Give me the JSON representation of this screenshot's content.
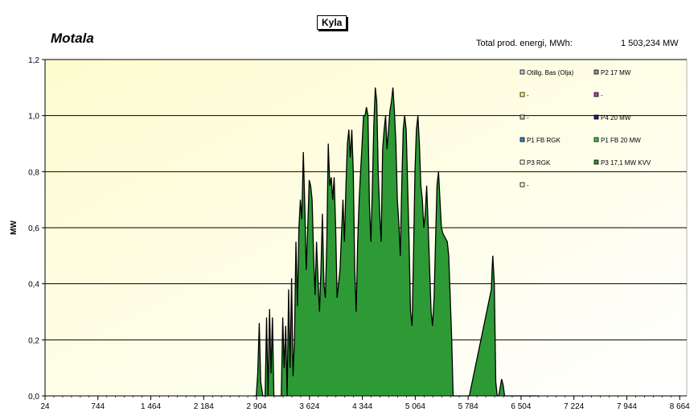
{
  "site_name": "Motala",
  "total": {
    "label": "Total prod. energi, MWh:",
    "value": "1 503,234 MW"
  },
  "colors": {
    "area_fill": "#2e9a36",
    "area_line": "#000000",
    "plot_bg_start": "#fdfccf",
    "plot_bg_end": "#ffffff"
  },
  "chart_data": {
    "type": "area",
    "title": "Kyla",
    "xlabel": "",
    "ylabel": "MW",
    "ylim": [
      0,
      1.2
    ],
    "xlim": [
      24,
      8760
    ],
    "grid": true,
    "legend_position": "top-right",
    "y_ticks": [
      "0,0",
      "0,2",
      "0,4",
      "0,6",
      "0,8",
      "1,0",
      "1,2"
    ],
    "x_ticks": [
      "24",
      "744",
      "1 464",
      "2 184",
      "2 904",
      "3 624",
      "4 344",
      "5 064",
      "5 784",
      "6 504",
      "7 224",
      "7 944",
      "8 664"
    ],
    "legend": [
      {
        "name": "Otillg. Bas (Olja)",
        "color": "#b8c8f0"
      },
      {
        "name": "P2 17 MW",
        "color": "#9a9a9a"
      },
      {
        "name": "-",
        "color": "#ffff66"
      },
      {
        "name": "-",
        "color": "#cc33cc"
      },
      {
        "name": "-",
        "color": "#cfcfcf"
      },
      {
        "name": "P4 20 MW",
        "color": "#1a237e"
      },
      {
        "name": "P1 FB RGK",
        "color": "#3388cc"
      },
      {
        "name": "P1 FB 20 MW",
        "color": "#33cc44"
      },
      {
        "name": "P3 RGK",
        "color": "#ffffff"
      },
      {
        "name": "P3 17,1 MW KVV",
        "color": "#2e9a36"
      },
      {
        "name": "-",
        "color": "#ffffcc"
      }
    ],
    "series": [
      {
        "name": "P3 17,1 MW KVV",
        "x": [
          2860,
          2900,
          2920,
          2940,
          2960,
          2990,
          3020,
          3040,
          3060,
          3080,
          3100,
          3120,
          3140,
          3160,
          3180,
          3200,
          3220,
          3240,
          3260,
          3280,
          3300,
          3320,
          3340,
          3360,
          3380,
          3400,
          3420,
          3440,
          3460,
          3480,
          3500,
          3520,
          3540,
          3560,
          3580,
          3600,
          3620,
          3640,
          3660,
          3680,
          3700,
          3720,
          3740,
          3760,
          3780,
          3800,
          3820,
          3840,
          3860,
          3880,
          3900,
          3920,
          3940,
          3960,
          3980,
          4000,
          4020,
          4040,
          4060,
          4080,
          4100,
          4120,
          4140,
          4160,
          4180,
          4200,
          4220,
          4240,
          4260,
          4280,
          4300,
          4320,
          4340,
          4360,
          4380,
          4400,
          4420,
          4440,
          4460,
          4480,
          4500,
          4520,
          4540,
          4560,
          4580,
          4600,
          4620,
          4640,
          4660,
          4680,
          4700,
          4720,
          4740,
          4760,
          4780,
          4800,
          4820,
          4840,
          4860,
          4880,
          4900,
          4920,
          4940,
          4960,
          4980,
          5000,
          5020,
          5040,
          5060,
          5080,
          5100,
          5120,
          5140,
          5160,
          5180,
          5200,
          5220,
          5240,
          5260,
          5280,
          5300,
          5320,
          5340,
          5360,
          5380,
          5400,
          5420,
          5440,
          5460,
          5480,
          5500,
          5520,
          5540,
          5560,
          5580,
          5600,
          5620,
          5640,
          5660,
          5680,
          5700,
          5720,
          5740,
          5760,
          5780,
          5800,
          6100,
          6110,
          6120,
          6140,
          6160,
          6180,
          6200,
          6220,
          6240,
          6260,
          6280,
          6300,
          6320,
          6340,
          6360,
          6380,
          6400,
          6420,
          6440,
          6460,
          6480,
          6500,
          6520,
          6540,
          6560,
          6580,
          6600,
          6620,
          6640,
          6660,
          6680,
          6700,
          6720,
          6740
        ],
        "values": [
          0,
          0,
          0.08,
          0.26,
          0.05,
          0,
          0,
          0.28,
          0,
          0.31,
          0.08,
          0.28,
          0,
          0,
          0,
          0,
          0,
          0,
          0.28,
          0.1,
          0.25,
          0,
          0.38,
          0.1,
          0.42,
          0.07,
          0.2,
          0.55,
          0.32,
          0.6,
          0.7,
          0.63,
          0.87,
          0.68,
          0.45,
          0.6,
          0.77,
          0.75,
          0.7,
          0.5,
          0.36,
          0.55,
          0.42,
          0.3,
          0.45,
          0.65,
          0.4,
          0.35,
          0.55,
          0.9,
          0.75,
          0.78,
          0.7,
          0.78,
          0.6,
          0.35,
          0.4,
          0.45,
          0.58,
          0.7,
          0.55,
          0.75,
          0.9,
          0.95,
          0.85,
          0.95,
          0.8,
          0.45,
          0.3,
          0.55,
          0.7,
          0.8,
          0.9,
          1.0,
          1.0,
          1.03,
          1.0,
          0.68,
          0.55,
          0.74,
          0.97,
          1.1,
          1.05,
          0.8,
          0.65,
          0.55,
          0.88,
          0.95,
          1.0,
          0.88,
          0.95,
          1.02,
          1.05,
          1.1,
          1.02,
          0.9,
          0.7,
          0.62,
          0.5,
          0.75,
          0.95,
          1.0,
          0.95,
          0.75,
          0.55,
          0.3,
          0.25,
          0.5,
          0.8,
          0.95,
          1.0,
          0.9,
          0.75,
          0.7,
          0.6,
          0.65,
          0.75,
          0.6,
          0.45,
          0.3,
          0.25,
          0.35,
          0.55,
          0.75,
          0.8,
          0.7,
          0.6,
          0.58,
          0.57,
          0.56,
          0.55,
          0.5,
          0.35,
          0.2,
          0,
          0,
          0,
          0,
          0,
          0,
          0,
          0,
          0,
          0,
          0,
          0,
          0.38,
          0.45,
          0.5,
          0.4,
          0.05,
          0,
          0,
          0.03,
          0.06,
          0.04,
          0,
          0,
          0,
          0,
          0,
          0,
          0,
          0,
          0,
          0,
          0,
          0,
          0,
          0,
          0,
          0,
          0,
          0,
          0,
          0,
          0,
          0,
          0,
          0
        ],
        "color": "#2e9a36"
      }
    ]
  }
}
